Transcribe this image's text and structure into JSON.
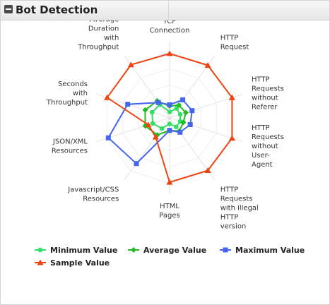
{
  "panel": {
    "title": "Bot Detection"
  },
  "chart_data": {
    "type": "radar",
    "title": "",
    "axes": [
      [
        "TCP",
        "Connection"
      ],
      [
        "HTTP",
        "Request"
      ],
      [
        "HTTP",
        "Requests",
        "without",
        "Referer"
      ],
      [
        "HTTP",
        "Requests",
        "without",
        "User-",
        "Agent"
      ],
      [
        "HTTP",
        "Requests",
        "with illegal",
        "HTTP",
        "version"
      ],
      [
        "HTML",
        "Pages"
      ],
      [
        "Javascript/CSS",
        "Resources"
      ],
      [
        "JSON/XML",
        "Resources"
      ],
      [
        "Seconds",
        "with",
        "Throughput"
      ],
      [
        "Average",
        "Duration",
        "with",
        "Throughput"
      ]
    ],
    "rlim": [
      0,
      1
    ],
    "grid": true,
    "legend_position": "bottom",
    "series": [
      {
        "name": "Minimum Value",
        "color": "#33dd66",
        "marker": "circle",
        "values": [
          0.09,
          0.18,
          0.17,
          0.17,
          0.17,
          0.09,
          0.2,
          0.27,
          0.28,
          0.25
        ]
      },
      {
        "name": "Average Value",
        "color": "#22bb22",
        "marker": "diamond",
        "values": [
          0.18,
          0.24,
          0.26,
          0.22,
          0.25,
          0.19,
          0.32,
          0.39,
          0.39,
          0.32
        ]
      },
      {
        "name": "Maximum Value",
        "color": "#4466ee",
        "marker": "square",
        "values": [
          0.2,
          0.34,
          0.36,
          0.33,
          0.27,
          0.19,
          0.86,
          0.98,
          0.67,
          0.29
        ]
      },
      {
        "name": "Sample Value",
        "color": "#ee4411",
        "marker": "triangle",
        "values": [
          0.98,
          0.99,
          1.0,
          1.0,
          0.99,
          0.98,
          0.36,
          0.34,
          1.0,
          1.0
        ]
      }
    ]
  }
}
